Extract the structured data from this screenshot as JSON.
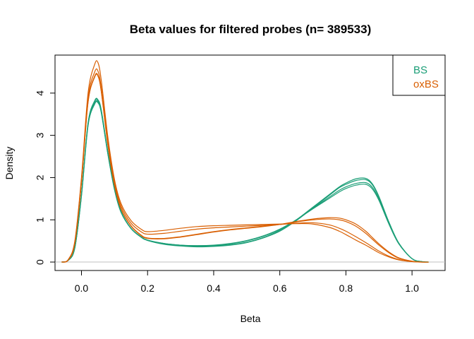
{
  "chart_data": {
    "type": "line",
    "title": "Beta values for filtered probes (n= 389533)",
    "xlabel": "Beta",
    "ylabel": "Density",
    "xlim": [
      -0.08,
      1.1
    ],
    "ylim": [
      -0.2,
      4.9
    ],
    "xticks": [
      "0.0",
      "0.2",
      "0.4",
      "0.6",
      "0.8",
      "1.0"
    ],
    "yticks": [
      "0",
      "1",
      "2",
      "3",
      "4"
    ],
    "baseline": 0,
    "baseline_color": "#c0c0c0",
    "legend": {
      "position": "top-right",
      "entries": [
        "BS",
        "oxBS"
      ]
    },
    "colors": {
      "BS": "#1b9e77",
      "oxBS": "#d95f02"
    },
    "x": [
      -0.06,
      -0.04,
      -0.02,
      0.0,
      0.02,
      0.04,
      0.05,
      0.06,
      0.08,
      0.1,
      0.12,
      0.15,
      0.18,
      0.2,
      0.25,
      0.3,
      0.35,
      0.4,
      0.45,
      0.5,
      0.55,
      0.6,
      0.65,
      0.7,
      0.75,
      0.78,
      0.8,
      0.83,
      0.86,
      0.88,
      0.9,
      0.93,
      0.96,
      1.0,
      1.03,
      1.05
    ],
    "series": [
      {
        "name": "BS",
        "values": [
          0,
          0.04,
          0.35,
          1.6,
          3.3,
          3.82,
          3.84,
          3.6,
          2.6,
          1.75,
          1.2,
          0.8,
          0.6,
          0.52,
          0.43,
          0.39,
          0.37,
          0.38,
          0.41,
          0.47,
          0.58,
          0.75,
          1.0,
          1.3,
          1.6,
          1.78,
          1.87,
          1.97,
          1.98,
          1.85,
          1.55,
          0.95,
          0.45,
          0.08,
          0.01,
          0
        ]
      },
      {
        "name": "BS",
        "values": [
          0,
          0.04,
          0.35,
          1.6,
          3.28,
          3.8,
          3.82,
          3.58,
          2.58,
          1.73,
          1.18,
          0.79,
          0.59,
          0.51,
          0.42,
          0.38,
          0.36,
          0.37,
          0.4,
          0.46,
          0.57,
          0.73,
          0.98,
          1.28,
          1.58,
          1.76,
          1.84,
          1.93,
          1.95,
          1.83,
          1.53,
          0.94,
          0.44,
          0.08,
          0.01,
          0
        ]
      },
      {
        "name": "BS",
        "values": [
          0,
          0.04,
          0.34,
          1.58,
          3.25,
          3.76,
          3.79,
          3.55,
          2.56,
          1.72,
          1.18,
          0.8,
          0.6,
          0.52,
          0.44,
          0.4,
          0.38,
          0.39,
          0.43,
          0.5,
          0.61,
          0.77,
          1.0,
          1.27,
          1.54,
          1.7,
          1.78,
          1.86,
          1.88,
          1.77,
          1.49,
          0.92,
          0.44,
          0.08,
          0.01,
          0
        ]
      },
      {
        "name": "BS",
        "values": [
          0,
          0.04,
          0.34,
          1.56,
          3.23,
          3.74,
          3.77,
          3.53,
          2.55,
          1.71,
          1.17,
          0.8,
          0.6,
          0.52,
          0.44,
          0.4,
          0.39,
          0.4,
          0.44,
          0.51,
          0.62,
          0.78,
          1.0,
          1.26,
          1.51,
          1.66,
          1.74,
          1.82,
          1.84,
          1.73,
          1.46,
          0.9,
          0.43,
          0.08,
          0.01,
          0
        ]
      },
      {
        "name": "oxBS",
        "values": [
          0,
          0.06,
          0.5,
          2.0,
          4.0,
          4.68,
          4.72,
          4.3,
          2.95,
          1.95,
          1.38,
          0.98,
          0.78,
          0.72,
          0.75,
          0.8,
          0.84,
          0.86,
          0.87,
          0.88,
          0.89,
          0.9,
          0.91,
          0.9,
          0.82,
          0.73,
          0.65,
          0.52,
          0.4,
          0.31,
          0.22,
          0.12,
          0.05,
          0.01,
          0,
          0
        ]
      },
      {
        "name": "oxBS",
        "values": [
          0,
          0.05,
          0.48,
          1.95,
          3.88,
          4.5,
          4.52,
          4.12,
          2.84,
          1.88,
          1.32,
          0.92,
          0.72,
          0.66,
          0.68,
          0.73,
          0.78,
          0.81,
          0.83,
          0.85,
          0.87,
          0.89,
          0.92,
          0.93,
          0.88,
          0.8,
          0.73,
          0.6,
          0.46,
          0.36,
          0.26,
          0.14,
          0.06,
          0.01,
          0,
          0
        ]
      },
      {
        "name": "oxBS",
        "values": [
          0,
          0.05,
          0.46,
          1.9,
          3.8,
          4.4,
          4.42,
          4.05,
          2.78,
          1.83,
          1.26,
          0.86,
          0.64,
          0.57,
          0.56,
          0.6,
          0.66,
          0.72,
          0.77,
          0.81,
          0.85,
          0.89,
          0.95,
          1.0,
          1.02,
          1.0,
          0.96,
          0.85,
          0.68,
          0.54,
          0.4,
          0.22,
          0.09,
          0.02,
          0,
          0
        ]
      },
      {
        "name": "oxBS",
        "values": [
          0,
          0.05,
          0.45,
          1.88,
          3.78,
          4.38,
          4.4,
          4.03,
          2.76,
          1.82,
          1.25,
          0.85,
          0.63,
          0.56,
          0.55,
          0.59,
          0.65,
          0.71,
          0.76,
          0.8,
          0.84,
          0.89,
          0.96,
          1.02,
          1.05,
          1.04,
          1.0,
          0.9,
          0.73,
          0.58,
          0.43,
          0.24,
          0.1,
          0.02,
          0,
          0
        ]
      }
    ]
  }
}
